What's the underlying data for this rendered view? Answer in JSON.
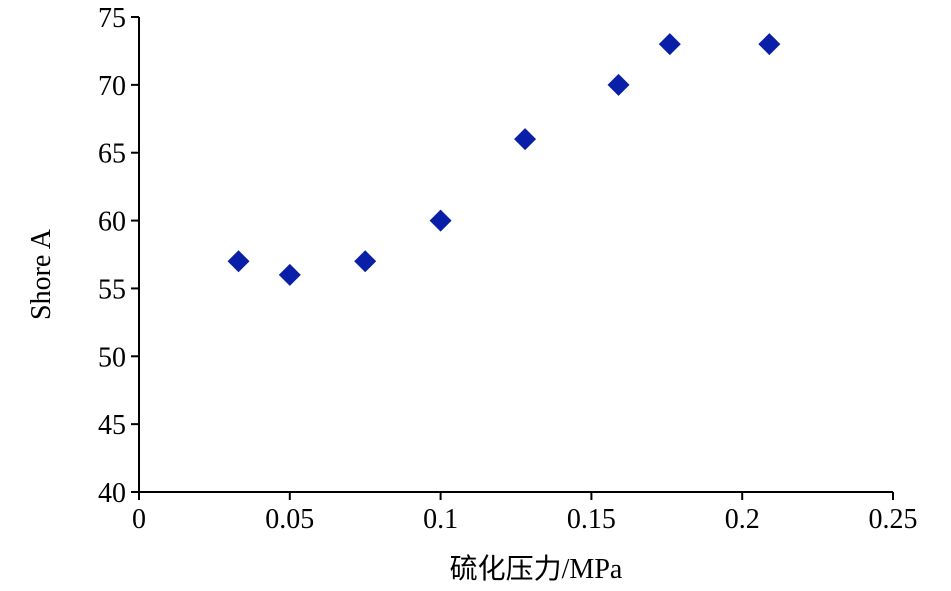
{
  "chart_data": {
    "type": "scatter",
    "title": "",
    "xlabel": "硫化压力/MPa",
    "ylabel": "Shore A",
    "xlim": [
      0,
      0.25
    ],
    "ylim": [
      40,
      75
    ],
    "x_ticks": [
      "0",
      "0.05",
      "0.1",
      "0.15",
      "0.2",
      "0.25"
    ],
    "y_ticks": [
      "40",
      "45",
      "50",
      "55",
      "60",
      "65",
      "70",
      "75"
    ],
    "grid": false,
    "legend": "none",
    "marker": "diamond",
    "marker_color": "#0A1FA8",
    "series": [
      {
        "x": [
          0.033,
          0.05,
          0.075,
          0.1,
          0.128,
          0.159,
          0.176,
          0.209
        ],
        "y": [
          57,
          56,
          57,
          60,
          66,
          70,
          73,
          73
        ]
      }
    ]
  }
}
